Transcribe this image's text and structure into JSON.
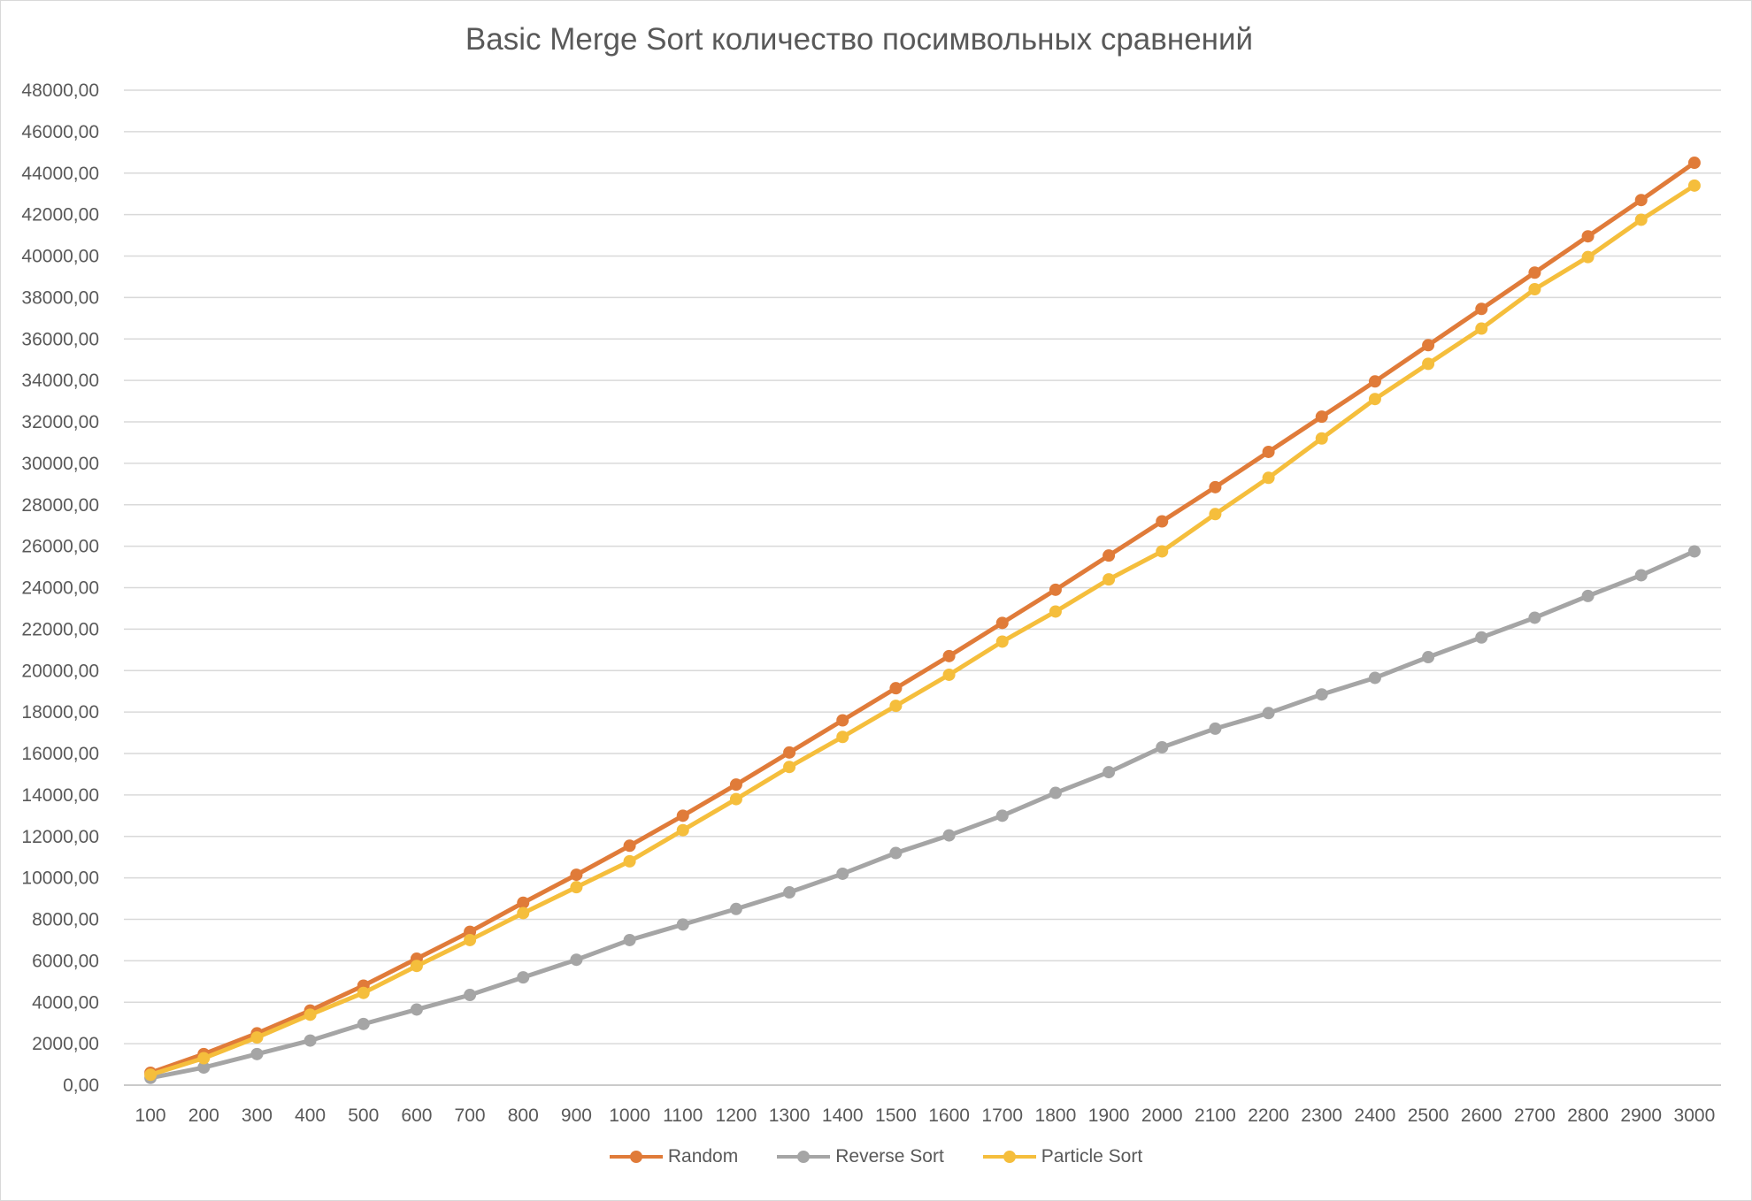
{
  "chart_data": {
    "type": "line",
    "title": "Basic Merge Sort количество посимвольных сравнений",
    "xlabel": "",
    "ylabel": "",
    "ylim": [
      0,
      48000
    ],
    "y_ticks": [
      "0,00",
      "2000,00",
      "4000,00",
      "6000,00",
      "8000,00",
      "10000,00",
      "12000,00",
      "14000,00",
      "16000,00",
      "18000,00",
      "20000,00",
      "22000,00",
      "24000,00",
      "26000,00",
      "28000,00",
      "30000,00",
      "32000,00",
      "34000,00",
      "36000,00",
      "38000,00",
      "40000,00",
      "42000,00",
      "44000,00",
      "46000,00",
      "48000,00"
    ],
    "grid": true,
    "legend_position": "bottom",
    "categories": [
      "100",
      "200",
      "300",
      "400",
      "500",
      "600",
      "700",
      "800",
      "900",
      "1000",
      "1100",
      "1200",
      "1300",
      "1400",
      "1500",
      "1600",
      "1700",
      "1800",
      "1900",
      "2000",
      "2100",
      "2200",
      "2300",
      "2400",
      "2500",
      "2600",
      "2700",
      "2800",
      "2900",
      "3000"
    ],
    "series": [
      {
        "name": "Random",
        "color": "#E07B39",
        "values": [
          600,
          1500,
          2500,
          3600,
          4800,
          6100,
          7400,
          8800,
          10150,
          11550,
          13000,
          14500,
          16050,
          17600,
          19150,
          20700,
          22300,
          23900,
          25550,
          27200,
          28850,
          30550,
          32250,
          33950,
          35700,
          37450,
          39200,
          40950,
          42700,
          44500
        ]
      },
      {
        "name": "Reverse Sort",
        "color": "#A5A5A5",
        "values": [
          350,
          850,
          1500,
          2150,
          2950,
          3650,
          4350,
          5200,
          6050,
          7000,
          7750,
          8500,
          9300,
          10200,
          11200,
          12050,
          13000,
          14100,
          15100,
          16300,
          17200,
          17950,
          18850,
          19650,
          20650,
          21600,
          22550,
          23600,
          24600,
          25750
        ]
      },
      {
        "name": "Particle Sort",
        "color": "#F5BE3C",
        "values": [
          500,
          1300,
          2300,
          3400,
          4450,
          5750,
          7000,
          8300,
          9550,
          10800,
          12300,
          13800,
          15350,
          16800,
          18300,
          19800,
          21400,
          22850,
          24400,
          25750,
          27550,
          29300,
          31200,
          33100,
          34800,
          36500,
          38400,
          39950,
          41750,
          43400
        ]
      }
    ]
  }
}
